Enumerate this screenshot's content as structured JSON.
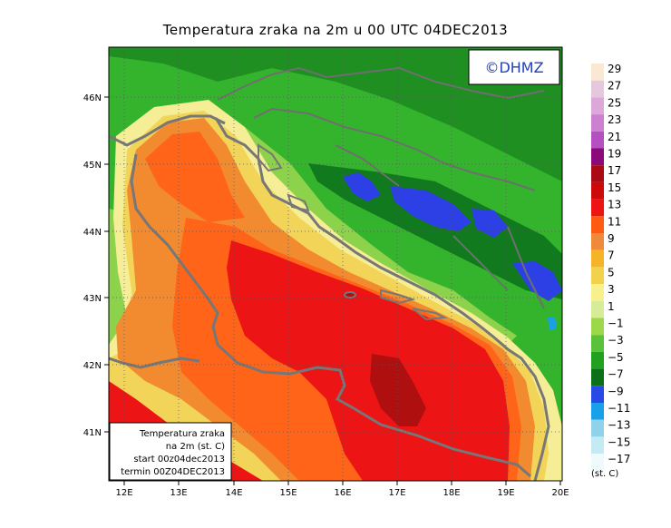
{
  "title": "Temperatura zraka na 2m u 00 UTC 04DEC2013",
  "logo_text": "©DHMZ",
  "info_box": {
    "line1": "Temperatura zraka",
    "line2": "na 2m (st. C)",
    "line3": "start 00z04dec2013",
    "line4": "termin 00Z04DEC2013"
  },
  "x_ticks": [
    "12E",
    "13E",
    "14E",
    "15E",
    "16E",
    "17E",
    "18E",
    "19E",
    "20E"
  ],
  "y_ticks": [
    "46N",
    "45N",
    "44N",
    "43N",
    "42N",
    "41N"
  ],
  "legend": {
    "unit": "(st. C)",
    "labels": [
      "29",
      "27",
      "25",
      "23",
      "21",
      "19",
      "17",
      "15",
      "13",
      "11",
      "9",
      "7",
      "5",
      "3",
      "1",
      "−1",
      "−3",
      "−5",
      "−7",
      "−9",
      "−11",
      "−13",
      "−15",
      "−17"
    ],
    "colors": [
      "#fbe8d2",
      "#e6c8de",
      "#dca7d9",
      "#cc80cf",
      "#b550c0",
      "#8a0a7a",
      "#aa0a14",
      "#cc0a0a",
      "#ee1414",
      "#ff5a12",
      "#ee8a3a",
      "#f5b428",
      "#f2d24c",
      "#f8f08c",
      "#d6ec98",
      "#9cd84a",
      "#5ac23a",
      "#22a020",
      "#0c7018",
      "#2848e8",
      "#18a0e8",
      "#90d2ea",
      "#c4eaf4",
      "#eefafc"
    ]
  },
  "map_colors": {
    "land_green": "#34b42c",
    "land_dark_green": "#117a1e",
    "land_light_green": "#8cd24a",
    "cold_blue": "#2c40e6",
    "sea_warm": "#ff6418",
    "sea_red": "#ec1414",
    "sea_dark_red": "#b00f10",
    "sea_orange": "#f28a30",
    "coast_yellow": "#f2d458",
    "coast_pale": "#f6ee96",
    "coastline": "#777777"
  }
}
